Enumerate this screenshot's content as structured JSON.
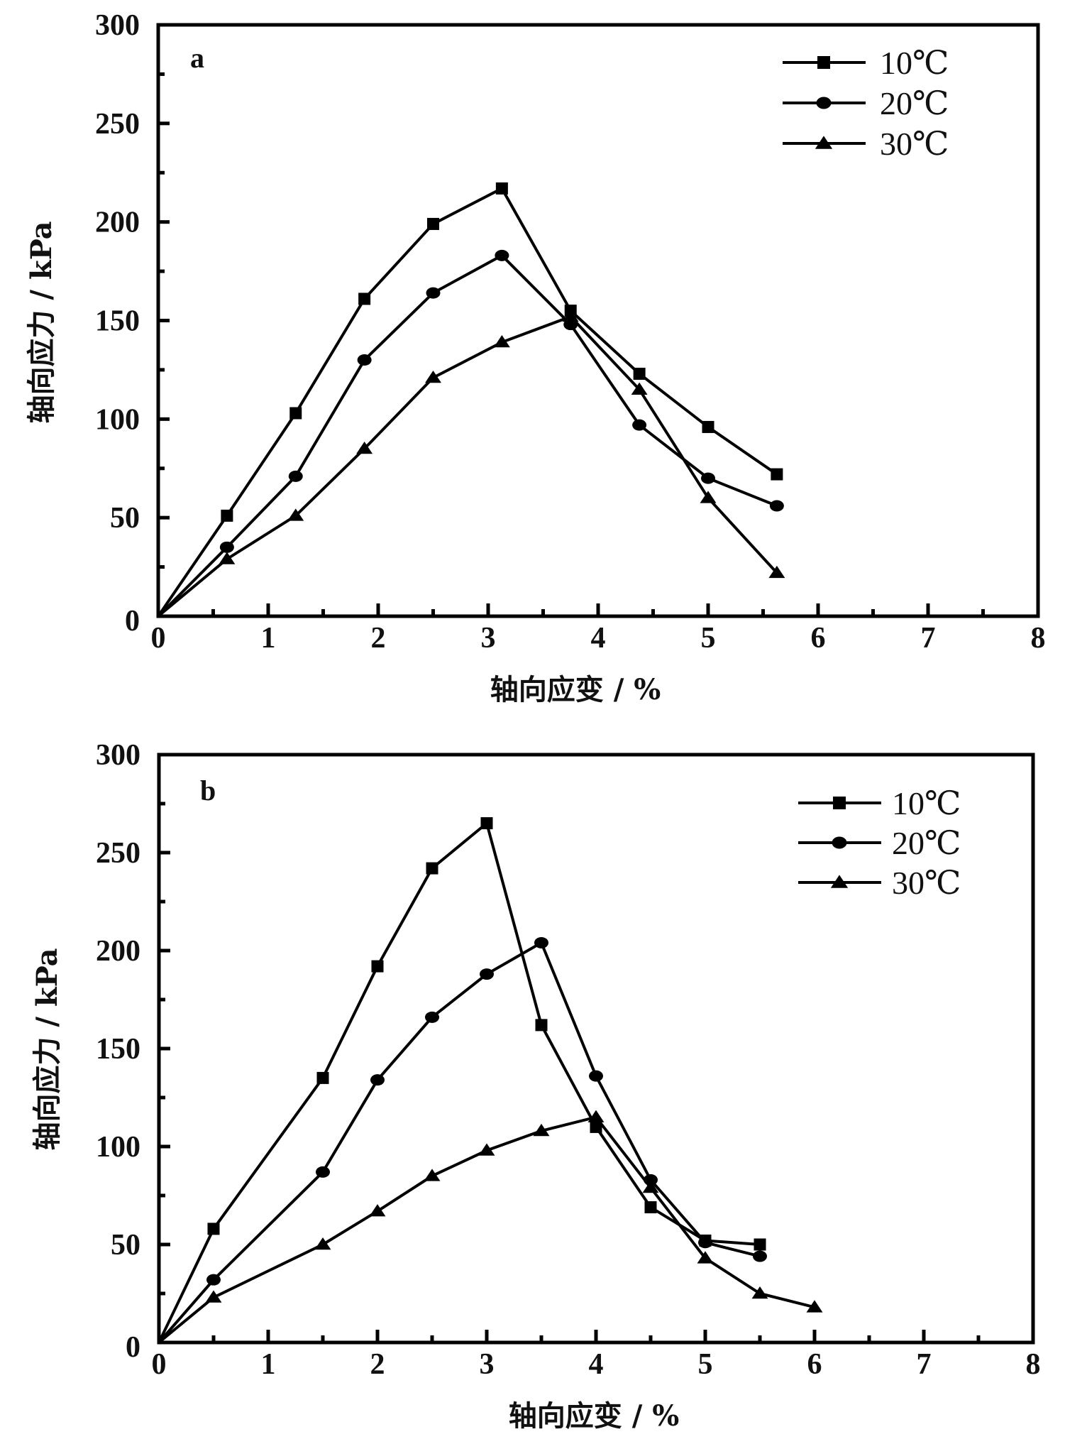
{
  "chart_data": [
    {
      "type": "line",
      "panel_label": "a",
      "xlabel": "轴向应变 / %",
      "ylabel": "轴向应力 / kPa",
      "xlim": [
        0,
        8
      ],
      "ylim": [
        0,
        300
      ],
      "xticks": [
        0,
        1,
        2,
        3,
        4,
        5,
        6,
        7,
        8
      ],
      "yticks": [
        0,
        50,
        100,
        150,
        200,
        250,
        300
      ],
      "grid": false,
      "legend_position": "top-right",
      "series": [
        {
          "name": "10℃",
          "marker": "square",
          "x": [
            0,
            0.625,
            1.25,
            1.875,
            2.5,
            3.125,
            3.75,
            4.375,
            5.0,
            5.625
          ],
          "y": [
            0,
            51,
            103,
            161,
            199,
            217,
            155,
            123,
            96,
            72
          ]
        },
        {
          "name": "20℃",
          "marker": "circle",
          "x": [
            0,
            0.625,
            1.25,
            1.875,
            2.5,
            3.125,
            3.75,
            4.375,
            5.0,
            5.625
          ],
          "y": [
            0,
            35,
            71,
            130,
            164,
            183,
            148,
            97,
            70,
            56
          ]
        },
        {
          "name": "30℃",
          "marker": "triangle",
          "x": [
            0,
            0.625,
            1.25,
            1.875,
            2.5,
            3.125,
            3.75,
            4.375,
            5.0,
            5.625
          ],
          "y": [
            0,
            29,
            51,
            85,
            121,
            139,
            152,
            115,
            60,
            22
          ]
        }
      ]
    },
    {
      "type": "line",
      "panel_label": "b",
      "xlabel": "轴向应变 / %",
      "ylabel": "轴向应力 / kPa",
      "xlim": [
        0,
        8
      ],
      "ylim": [
        0,
        300
      ],
      "xticks": [
        0,
        1,
        2,
        3,
        4,
        5,
        6,
        7,
        8
      ],
      "yticks": [
        0,
        50,
        100,
        150,
        200,
        250,
        300
      ],
      "grid": false,
      "legend_position": "top-right",
      "series": [
        {
          "name": "10℃",
          "marker": "square",
          "x": [
            0,
            0.5,
            1.5,
            2,
            2.5,
            3,
            3.5,
            4,
            4.5,
            5,
            5.5
          ],
          "y": [
            0,
            58,
            135,
            192,
            242,
            265,
            162,
            110,
            69,
            52,
            50
          ]
        },
        {
          "name": "20℃",
          "marker": "circle",
          "x": [
            0,
            0.5,
            1.5,
            2,
            2.5,
            3,
            3.5,
            4,
            4.5,
            5,
            5.5
          ],
          "y": [
            0,
            32,
            87,
            134,
            166,
            188,
            204,
            136,
            83,
            51,
            44
          ]
        },
        {
          "name": "30℃",
          "marker": "triangle",
          "x": [
            0,
            0.5,
            1.5,
            2,
            2.5,
            3,
            3.5,
            4,
            4.5,
            5,
            5.5,
            6
          ],
          "y": [
            0,
            23,
            50,
            67,
            85,
            98,
            108,
            115,
            79,
            43,
            25,
            18
          ]
        }
      ]
    }
  ]
}
